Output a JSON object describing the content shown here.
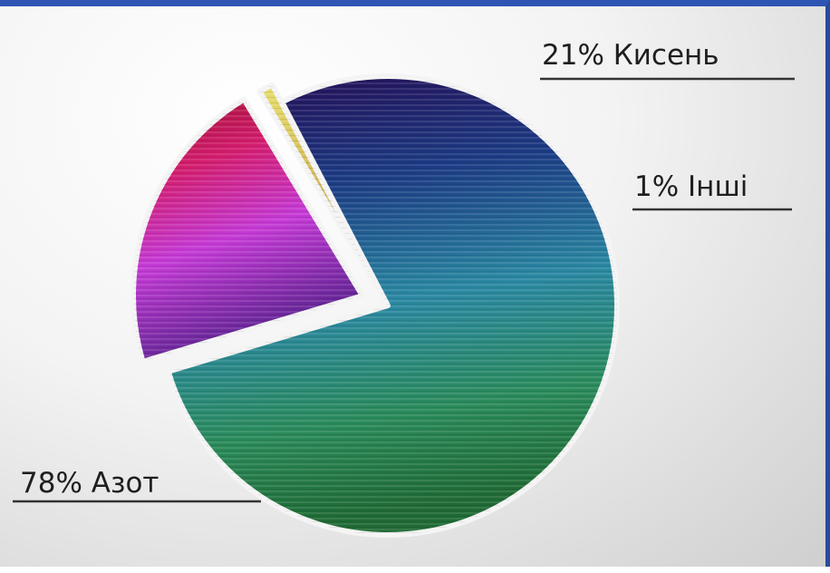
{
  "chart_data": {
    "type": "pie",
    "slices": [
      {
        "label": "78% Азот",
        "value": 78,
        "colors": [
          "#2a0a5e",
          "#1f4d8f",
          "#2a8aa0",
          "#2c8c4c"
        ]
      },
      {
        "label": "21% Кисень",
        "value": 21,
        "colors": [
          "#b0103a",
          "#d0208a",
          "#c23ad0",
          "#6a2aa0"
        ]
      },
      {
        "label": "1% Інші",
        "value": 1,
        "colors": [
          "#c8d040",
          "#e0c060"
        ]
      }
    ]
  }
}
